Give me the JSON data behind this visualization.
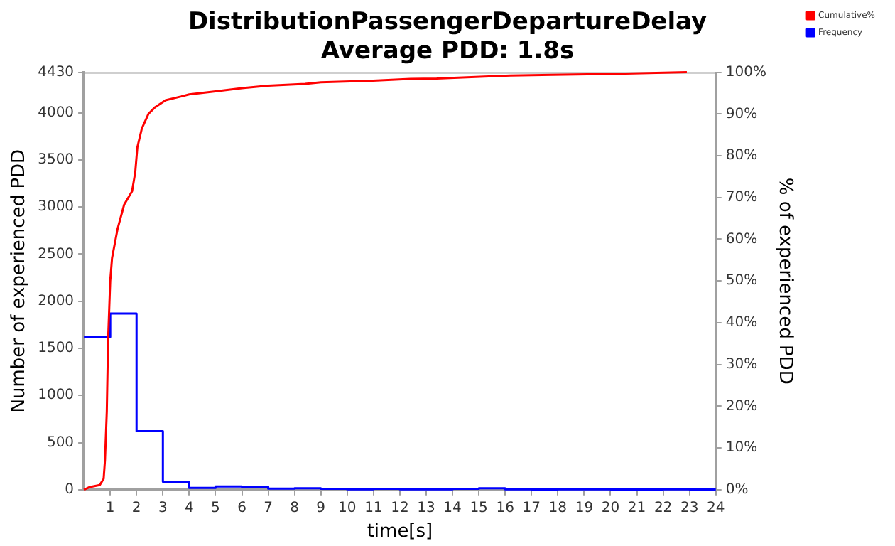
{
  "chart_data": {
    "type": "line",
    "title": "DistributionPassengerDepartureDelay",
    "subtitle": "Average PDD: 1.8s",
    "xlabel": "time[s]",
    "ylabel": "Number of experienced PDD",
    "y2label": "% of experienced PDD",
    "xlim": [
      0,
      24
    ],
    "xticks": [
      1,
      2,
      3,
      4,
      5,
      6,
      7,
      8,
      9,
      10,
      11,
      12,
      13,
      14,
      15,
      16,
      17,
      18,
      19,
      20,
      21,
      22,
      23,
      24
    ],
    "ylim": [
      0,
      4430
    ],
    "yticks": [
      0,
      500,
      1000,
      1500,
      2000,
      2500,
      3000,
      3500,
      4000,
      4430
    ],
    "y2lim": [
      0,
      100
    ],
    "y2ticks": [
      {
        "value": 0,
        "label": "0%"
      },
      {
        "value": 10,
        "label": "10%"
      },
      {
        "value": 20,
        "label": "20%"
      },
      {
        "value": 30,
        "label": "30%"
      },
      {
        "value": 40,
        "label": "40%"
      },
      {
        "value": 50,
        "label": "50%"
      },
      {
        "value": 60,
        "label": "60%"
      },
      {
        "value": 70,
        "label": "70%"
      },
      {
        "value": 80,
        "label": "80%"
      },
      {
        "value": 90,
        "label": "90%"
      },
      {
        "value": 100,
        "label": "100%"
      }
    ],
    "grid": false,
    "legend": "top right",
    "marker": "none",
    "line_style": "solid",
    "series": [
      {
        "name": "Cumulative%",
        "type": "line",
        "axis": "y2",
        "color": "#ff0000",
        "x": [
          0,
          0.2,
          0.6,
          0.75,
          0.8,
          0.87,
          0.92,
          1.0,
          1.07,
          1.28,
          1.53,
          1.83,
          1.95,
          2.03,
          2.2,
          2.45,
          2.7,
          3.1,
          3.7,
          4.0,
          5.0,
          6.0,
          7.0,
          8.4,
          9.0,
          10.7,
          12.4,
          13.4,
          16.2,
          20.0,
          22.9
        ],
        "values": [
          0,
          0.6,
          1.1,
          2.6,
          7,
          18.7,
          36,
          50,
          55.5,
          62.5,
          68.3,
          71.5,
          76,
          82,
          86.5,
          90,
          91.6,
          93.3,
          94.2,
          94.7,
          95.4,
          96.2,
          96.8,
          97.2,
          97.6,
          97.9,
          98.4,
          98.5,
          99.2,
          99.6,
          100
        ]
      },
      {
        "name": "Frequency",
        "type": "step",
        "axis": "y",
        "color": "#0000ff",
        "x": [
          0,
          1,
          2,
          3,
          4,
          5,
          6,
          7,
          8,
          9,
          10,
          11,
          12,
          13,
          14,
          15,
          16,
          17,
          18,
          19,
          20,
          21,
          22,
          23,
          24
        ],
        "values": [
          1620,
          1870,
          620,
          85,
          20,
          35,
          30,
          12,
          15,
          10,
          5,
          10,
          5,
          5,
          10,
          15,
          5,
          2,
          5,
          5,
          2,
          2,
          5,
          2,
          2
        ]
      }
    ]
  }
}
